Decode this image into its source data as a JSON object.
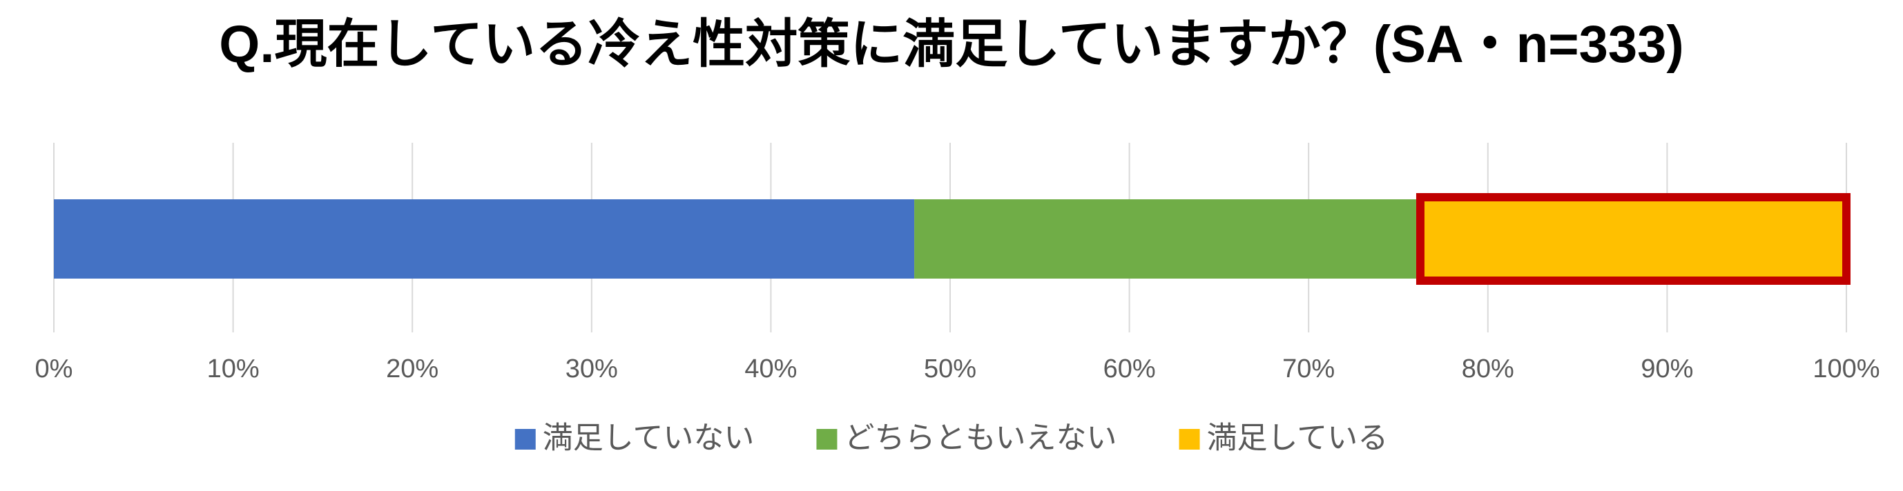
{
  "chart_data": {
    "type": "stacked_bar_horizontal",
    "title": "Q.現在している冷え性対策に満足していますか？(SA・n=333)",
    "series": [
      {
        "name": "満足していない",
        "color": "#4472c4",
        "values": [
          48
        ]
      },
      {
        "name": "どちらともいえない",
        "color": "#70ad47",
        "values": [
          28
        ]
      },
      {
        "name": "満足している",
        "color": "#ffc000",
        "values": [
          24
        ],
        "outline": "#c00000"
      }
    ],
    "xlim": [
      0,
      100
    ],
    "xticks": [
      {
        "value": 0,
        "label": "0%"
      },
      {
        "value": 10,
        "label": "10%"
      },
      {
        "value": 20,
        "label": "20%"
      },
      {
        "value": 30,
        "label": "30%"
      },
      {
        "value": 40,
        "label": "40%"
      },
      {
        "value": 50,
        "label": "50%"
      },
      {
        "value": 60,
        "label": "60%"
      },
      {
        "value": 70,
        "label": "70%"
      },
      {
        "value": 80,
        "label": "80%"
      },
      {
        "value": 90,
        "label": "90%"
      },
      {
        "value": 100,
        "label": "100%"
      }
    ],
    "grid": true,
    "legend": "bottom"
  }
}
